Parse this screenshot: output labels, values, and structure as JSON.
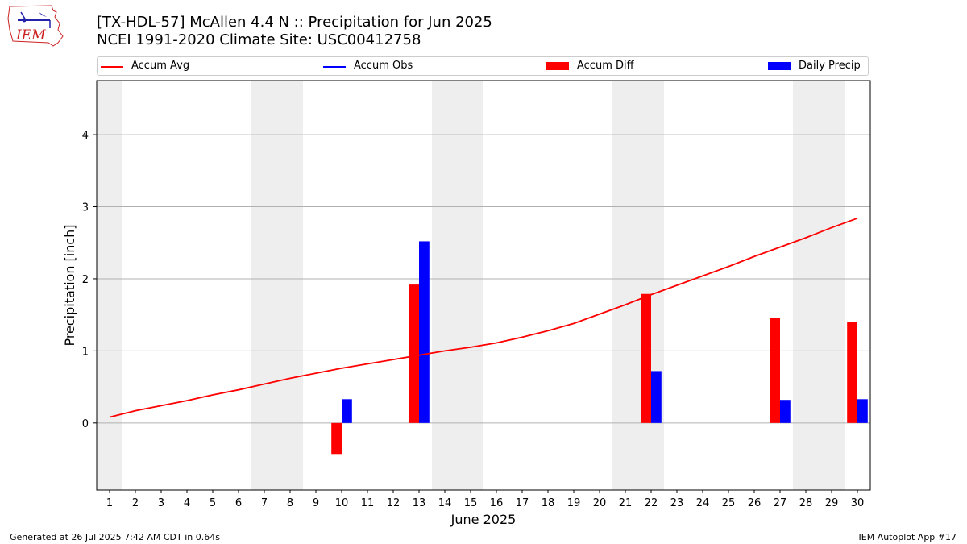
{
  "header": {
    "title_line1": "[TX-HDL-57] McAllen 4.4 N :: Precipitation for Jun 2025",
    "title_line2": "NCEI 1991-2020 Climate Site: USC00412758"
  },
  "logo": {
    "text": "IEM"
  },
  "footer": {
    "left": "Generated at 26 Jul 2025 7:42 AM CDT in 0.64s",
    "right": "IEM Autoplot App #17"
  },
  "colors": {
    "accum_avg": "#ff0000",
    "accum_obs": "#0000ff",
    "accum_diff": "#ff0000",
    "daily_precip": "#0000ff",
    "weekend_shade": "#eeeeee",
    "grid": "#b0b0b0"
  },
  "chart_data": {
    "type": "bar",
    "xlabel": "June 2025",
    "ylabel": "Precipitation [inch]",
    "xlim": [
      0.5,
      30.5
    ],
    "ylim": [
      -0.93,
      4.75
    ],
    "yticks": [
      0,
      1,
      2,
      3,
      4
    ],
    "grid": "horizontal",
    "legend_placement": "top",
    "days": [
      1,
      2,
      3,
      4,
      5,
      6,
      7,
      8,
      9,
      10,
      11,
      12,
      13,
      14,
      15,
      16,
      17,
      18,
      19,
      20,
      21,
      22,
      23,
      24,
      25,
      26,
      27,
      28,
      29,
      30
    ],
    "shaded_days": [
      1,
      7,
      8,
      14,
      15,
      21,
      22,
      28,
      29
    ],
    "series": [
      {
        "name": "Accum Avg",
        "kind": "line",
        "values": [
          0.08,
          0.17,
          0.24,
          0.31,
          0.39,
          0.46,
          0.54,
          0.62,
          0.69,
          0.76,
          0.82,
          0.88,
          0.94,
          1.0,
          1.05,
          1.11,
          1.19,
          1.28,
          1.38,
          1.51,
          1.64,
          1.78,
          1.91,
          2.04,
          2.17,
          2.31,
          2.44,
          2.57,
          2.71,
          2.84
        ]
      },
      {
        "name": "Accum Obs",
        "kind": "line",
        "values": []
      },
      {
        "name": "Accum Diff",
        "kind": "bar",
        "points": [
          {
            "day": 10,
            "value": -0.43
          },
          {
            "day": 13,
            "value": 1.92
          },
          {
            "day": 22,
            "value": 1.79
          },
          {
            "day": 27,
            "value": 1.46
          },
          {
            "day": 30,
            "value": 1.4
          }
        ]
      },
      {
        "name": "Daily Precip",
        "kind": "bar",
        "points": [
          {
            "day": 10,
            "value": 0.33
          },
          {
            "day": 13,
            "value": 2.52
          },
          {
            "day": 22,
            "value": 0.72
          },
          {
            "day": 27,
            "value": 0.32
          },
          {
            "day": 30,
            "value": 0.33
          }
        ]
      }
    ]
  }
}
